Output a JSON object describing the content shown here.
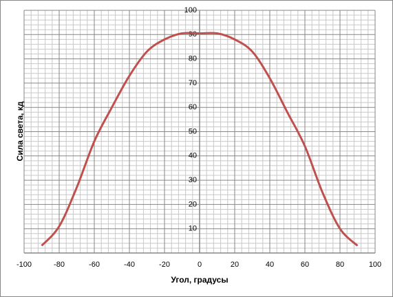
{
  "chart_data": {
    "type": "line",
    "x_label": "Угол, градусы",
    "y_label": "Сила света, кд",
    "x": [
      -90,
      -80,
      -70,
      -60,
      -50,
      -40,
      -30,
      -20,
      -10,
      0,
      10,
      20,
      30,
      40,
      50,
      60,
      70,
      80,
      90
    ],
    "series": [
      {
        "name": "Сила света",
        "color": "#c0504d",
        "values": [
          3,
          11,
          27,
          46,
          60,
          73,
          83,
          88,
          90.5,
          90.5,
          90.5,
          88,
          83,
          72,
          58,
          44,
          25,
          10,
          3
        ]
      }
    ],
    "xlim": [
      -100,
      100
    ],
    "xticks": [
      -100,
      -80,
      -60,
      -40,
      -20,
      0,
      20,
      40,
      60,
      80,
      100
    ],
    "ylim": [
      0,
      100
    ],
    "yticks": [
      10,
      20,
      30,
      40,
      50,
      60,
      70,
      80,
      90,
      100
    ],
    "grid": true,
    "minor_grid": true,
    "legend": false
  }
}
